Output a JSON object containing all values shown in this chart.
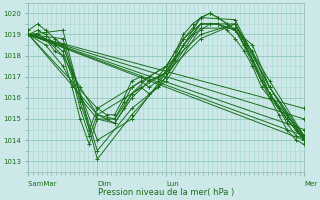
{
  "xlabel": "Pression niveau de la mer( hPa )",
  "background_color": "#cce8e8",
  "plot_bg_color": "#cce8e8",
  "line_color": "#1a6e1a",
  "grid_major_color": "#b0d8d8",
  "grid_minor_color": "#b8dcdc",
  "ylim": [
    1012.5,
    1020.5
  ],
  "yticks": [
    1013,
    1014,
    1015,
    1016,
    1017,
    1018,
    1019,
    1020
  ],
  "day_labels": [
    "Sam⁠Mar",
    "Dim",
    "Lun",
    "Mer"
  ],
  "day_positions": [
    0,
    60,
    120,
    240
  ],
  "xlim": [
    0,
    240
  ],
  "lines": [
    {
      "x": [
        0,
        30,
        60,
        90,
        120,
        150,
        180,
        210,
        240
      ],
      "y": [
        1019.0,
        1019.2,
        1013.1,
        1015.2,
        1017.0,
        1019.5,
        1019.5,
        1016.2,
        1014.1
      ]
    },
    {
      "x": [
        0,
        30,
        60,
        90,
        120,
        150,
        180,
        210,
        240
      ],
      "y": [
        1019.0,
        1018.8,
        1013.5,
        1015.5,
        1016.8,
        1019.3,
        1019.3,
        1016.0,
        1014.0
      ]
    },
    {
      "x": [
        0,
        30,
        60,
        90,
        120,
        150,
        180,
        210,
        240
      ],
      "y": [
        1019.0,
        1018.5,
        1014.0,
        1015.0,
        1017.2,
        1019.8,
        1019.7,
        1016.5,
        1014.2
      ]
    },
    {
      "x": [
        0,
        240
      ],
      "y": [
        1019.0,
        1014.0
      ]
    },
    {
      "x": [
        0,
        240
      ],
      "y": [
        1019.0,
        1014.2
      ]
    },
    {
      "x": [
        0,
        240
      ],
      "y": [
        1019.0,
        1014.5
      ]
    },
    {
      "x": [
        0,
        240
      ],
      "y": [
        1019.0,
        1015.0
      ]
    },
    {
      "x": [
        0,
        240
      ],
      "y": [
        1019.0,
        1015.5
      ]
    },
    {
      "x": [
        0,
        60,
        120,
        150,
        180,
        210,
        240
      ],
      "y": [
        1019.0,
        1015.2,
        1017.2,
        1018.8,
        1019.5,
        1016.8,
        1014.2
      ]
    },
    {
      "x": [
        0,
        60,
        120,
        150,
        180,
        210,
        240
      ],
      "y": [
        1019.0,
        1015.5,
        1017.5,
        1019.0,
        1019.5,
        1016.5,
        1014.0
      ]
    },
    {
      "x": [
        0,
        15,
        30,
        45,
        60,
        75,
        90,
        105,
        120,
        135,
        150,
        165,
        180,
        195,
        210,
        225,
        240
      ],
      "y": [
        1019.0,
        1018.8,
        1018.0,
        1016.5,
        1015.2,
        1015.0,
        1016.2,
        1017.0,
        1017.5,
        1018.8,
        1019.5,
        1019.5,
        1019.2,
        1018.5,
        1016.5,
        1015.2,
        1014.2
      ]
    },
    {
      "x": [
        0,
        15,
        30,
        45,
        60,
        75,
        90,
        105,
        120,
        135,
        150,
        165,
        180,
        195,
        210,
        225,
        240
      ],
      "y": [
        1019.0,
        1018.5,
        1017.5,
        1016.0,
        1015.0,
        1014.8,
        1016.0,
        1016.8,
        1017.2,
        1018.5,
        1019.5,
        1019.5,
        1019.2,
        1018.2,
        1016.2,
        1015.0,
        1014.0
      ]
    },
    {
      "x": [
        0,
        8,
        15,
        23,
        30,
        38,
        45,
        53,
        60,
        68,
        75,
        83,
        90,
        98,
        105,
        113,
        120,
        128,
        135,
        143,
        150,
        158,
        165,
        173,
        180,
        188,
        195,
        203,
        210,
        218,
        225,
        233,
        240
      ],
      "y": [
        1019.0,
        1019.2,
        1019.0,
        1018.5,
        1018.2,
        1017.0,
        1015.5,
        1014.2,
        1015.2,
        1015.0,
        1015.0,
        1015.8,
        1016.5,
        1016.8,
        1016.5,
        1016.8,
        1017.3,
        1018.0,
        1018.8,
        1019.3,
        1019.8,
        1020.0,
        1019.8,
        1019.5,
        1019.2,
        1018.5,
        1017.8,
        1016.8,
        1016.2,
        1015.5,
        1014.8,
        1014.2,
        1014.1
      ]
    },
    {
      "x": [
        0,
        8,
        15,
        23,
        30,
        38,
        45,
        53,
        60,
        68,
        75,
        83,
        90,
        98,
        105,
        113,
        120,
        128,
        135,
        143,
        150,
        158,
        165,
        173,
        180,
        188,
        195,
        203,
        210,
        218,
        225,
        233,
        240
      ],
      "y": [
        1019.0,
        1019.0,
        1018.8,
        1018.2,
        1018.0,
        1016.5,
        1015.0,
        1013.8,
        1015.0,
        1015.0,
        1014.8,
        1015.5,
        1016.2,
        1016.5,
        1016.2,
        1016.5,
        1017.0,
        1017.8,
        1018.5,
        1019.0,
        1019.2,
        1019.5,
        1019.5,
        1019.2,
        1018.8,
        1018.2,
        1017.5,
        1016.5,
        1016.0,
        1015.2,
        1014.5,
        1014.0,
        1013.8
      ]
    },
    {
      "x": [
        0,
        8,
        15,
        23,
        30,
        38,
        45,
        53,
        60,
        68,
        75,
        83,
        90,
        98,
        105,
        113,
        120,
        128,
        135,
        143,
        150,
        158,
        165,
        173,
        180,
        188,
        195,
        203,
        210,
        218,
        225,
        233,
        240
      ],
      "y": [
        1019.2,
        1019.5,
        1019.2,
        1018.8,
        1018.5,
        1017.2,
        1015.8,
        1014.5,
        1015.5,
        1015.2,
        1015.2,
        1016.0,
        1016.8,
        1017.0,
        1016.8,
        1017.0,
        1017.5,
        1018.2,
        1019.0,
        1019.5,
        1019.8,
        1020.0,
        1019.8,
        1019.5,
        1019.2,
        1018.5,
        1017.8,
        1016.8,
        1016.2,
        1015.5,
        1015.0,
        1014.5,
        1014.2
      ]
    }
  ],
  "marker_style": "+",
  "marker_size": 2.5,
  "linewidth": 0.7
}
